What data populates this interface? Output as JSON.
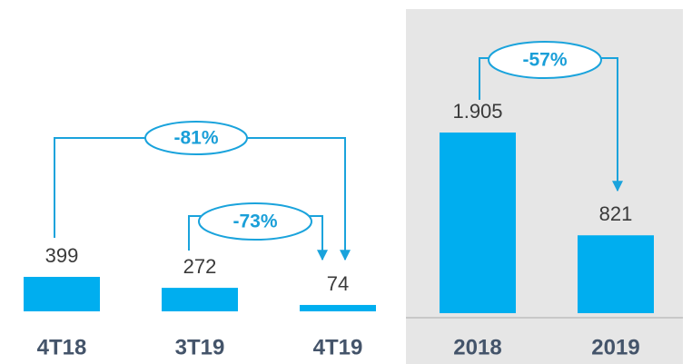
{
  "chart_data": [
    {
      "type": "bar",
      "categories": [
        "4T18",
        "3T19",
        "4T19"
      ],
      "values": [
        399,
        272,
        74
      ],
      "color": "#00aeef",
      "annotations": [
        "-81%",
        "-73%"
      ]
    },
    {
      "type": "bar",
      "categories": [
        "2018",
        "2019"
      ],
      "values": [
        1905,
        821
      ],
      "value_labels": [
        "1.905",
        "821"
      ],
      "color": "#00aeef",
      "annotations": [
        "-57%"
      ]
    }
  ]
}
